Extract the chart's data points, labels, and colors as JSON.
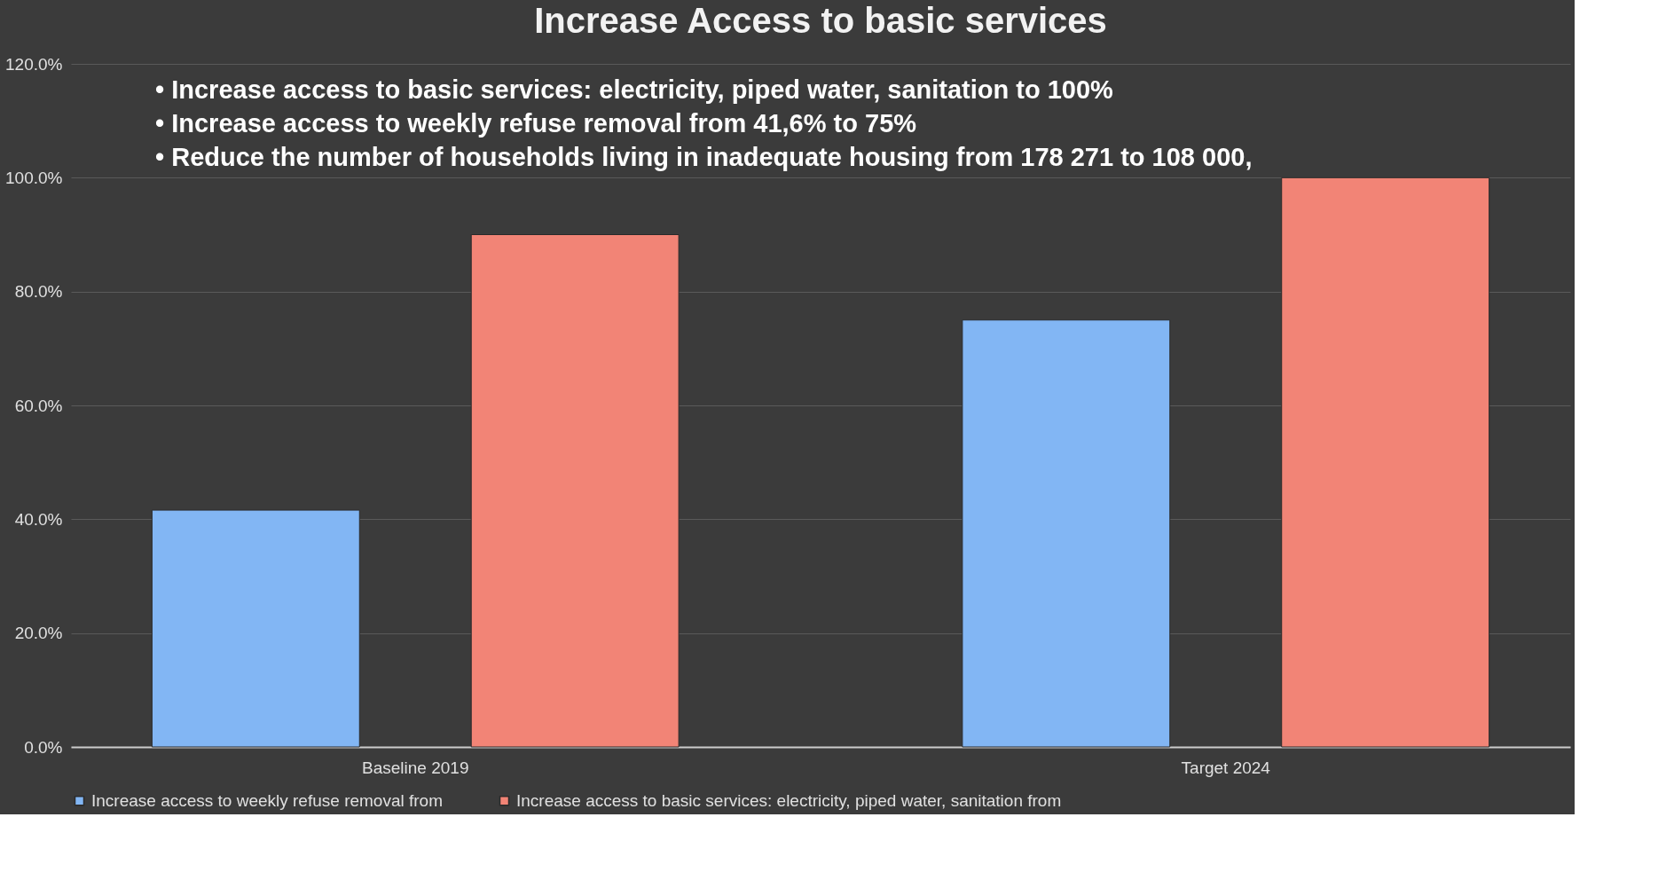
{
  "chart_data": {
    "type": "bar",
    "title": "Increase Access to basic services",
    "annotations": [
      "•     Increase access to basic services: electricity, piped water, sanitation to 100%",
      "•     Increase access to weekly refuse removal from 41,6% to 75%",
      "•     Reduce the number of households living in inadequate housing from  178 271 to 108 000,"
    ],
    "categories": [
      "Baseline 2019",
      "Target 2024"
    ],
    "series": [
      {
        "name": "Increase access to weekly refuse removal from",
        "color": "#82b6f4",
        "values": [
          41.6,
          75
        ]
      },
      {
        "name": "Increase access to basic services: electricity, piped water, sanitation from",
        "color": "#f28476",
        "values": [
          90,
          100
        ]
      }
    ],
    "ylim": [
      0,
      120
    ],
    "yticks": [
      {
        "value": 0,
        "label": "0.0%"
      },
      {
        "value": 20,
        "label": "20.0%"
      },
      {
        "value": 40,
        "label": "40.0%"
      },
      {
        "value": 60,
        "label": "60.0%"
      },
      {
        "value": 80,
        "label": "80.0%"
      },
      {
        "value": 100,
        "label": "100.0%"
      },
      {
        "value": 120,
        "label": "120.0%"
      }
    ],
    "grid": true,
    "legend": "bottom"
  }
}
